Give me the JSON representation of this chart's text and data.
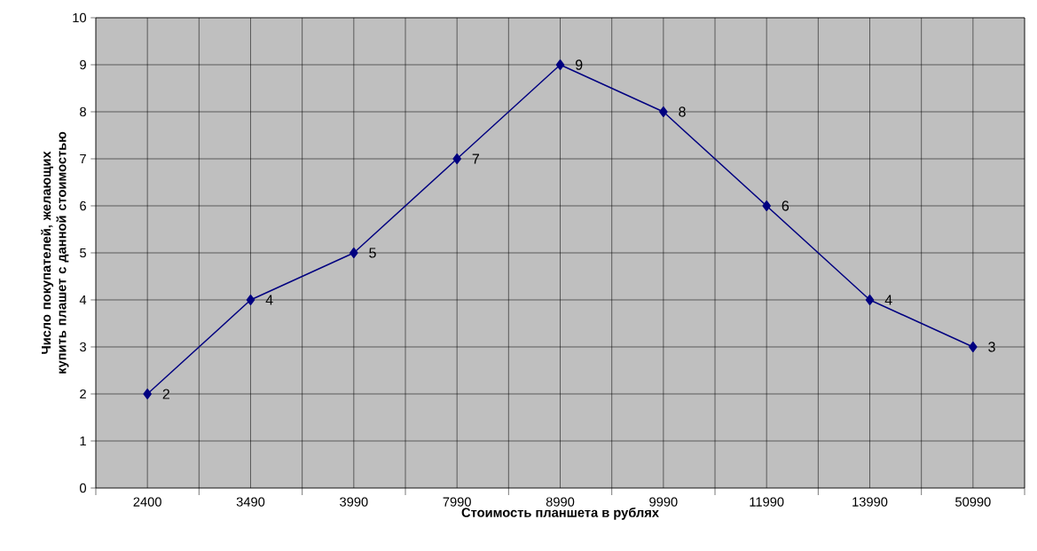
{
  "chart_data": {
    "type": "line",
    "xlabel": "Стоимость планшета в рублях",
    "ylabel": "Число покупателей, желающих купить плашет с данной стоимостью",
    "categories": [
      "2400",
      "3490",
      "3990",
      "7990",
      "8990",
      "9990",
      "11990",
      "13990",
      "50990"
    ],
    "values": [
      2,
      4,
      5,
      7,
      9,
      8,
      6,
      4,
      3
    ],
    "color": "#000080",
    "marker": "diamond",
    "line_style": "solid",
    "data_labels": true,
    "grid": true,
    "ylim": [
      0,
      10
    ],
    "yticks": [
      0,
      1,
      2,
      3,
      4,
      5,
      6,
      7,
      8,
      9,
      10
    ]
  }
}
